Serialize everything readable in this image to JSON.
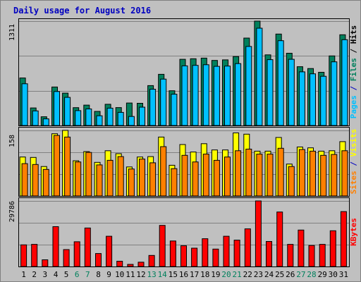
{
  "chart_data": {
    "type": "bar",
    "title": "Daily usage for August 2016",
    "categories": [
      "1",
      "2",
      "3",
      "4",
      "5",
      "6",
      "7",
      "8",
      "9",
      "10",
      "11",
      "12",
      "13",
      "14",
      "15",
      "16",
      "17",
      "18",
      "19",
      "20",
      "21",
      "22",
      "23",
      "24",
      "25",
      "26",
      "27",
      "28",
      "29",
      "30",
      "31"
    ],
    "weekend_days": [
      "6",
      "7",
      "13",
      "14",
      "20",
      "21",
      "27",
      "28"
    ],
    "panels": [
      {
        "name": "pages-files-hits",
        "ymax": 1311,
        "ymax_label": "1311",
        "right_label_parts": [
          "Pages",
          " / ",
          "Files",
          " / ",
          "Hits"
        ],
        "series": [
          {
            "name": "Hits",
            "color": "#00805c",
            "values": [
              597,
              221,
              110,
              484,
              407,
              224,
              256,
              177,
              267,
              225,
              283,
              279,
              501,
              643,
              437,
              832,
              839,
              847,
              818,
              825,
              866,
              1098,
              1311,
              888,
              1149,
              908,
              739,
              716,
              669,
              874,
              1140
            ]
          },
          {
            "name": "Files",
            "color": "#00c0ff",
            "values": [
              524,
              183,
              83,
              427,
              353,
              187,
              208,
              122,
              218,
              165,
              113,
              230,
              456,
              583,
              393,
              749,
              756,
              764,
              743,
              747,
              778,
              993,
              1222,
              827,
              1066,
              832,
              674,
              649,
              618,
              800,
              1078
            ]
          },
          {
            "name": "Pages",
            "color": "#0000c0",
            "values": [
              0,
              0,
              0,
              0,
              0,
              0,
              0,
              0,
              0,
              0,
              0,
              0,
              0,
              0,
              0,
              0,
              0,
              0,
              0,
              0,
              0,
              0,
              0,
              0,
              0,
              0,
              0,
              0,
              0,
              0,
              0
            ]
          }
        ]
      },
      {
        "name": "sites-visits",
        "ymax": 158,
        "ymax_label": "158",
        "right_label_parts": [
          "Sites",
          " / ",
          "Visits"
        ],
        "series": [
          {
            "name": "Visits",
            "color": "#ffff00",
            "values": [
              94,
              93,
              71,
              150,
              158,
              85,
              107,
              81,
              109,
              102,
              70,
              94,
              95,
              142,
              74,
              124,
              106,
              126,
              111,
              111,
              152,
              149,
              108,
              108,
              141,
              77,
              118,
              116,
              108,
              109,
              131
            ]
          },
          {
            "name": "Sites",
            "color": "#ff8000",
            "values": [
              78,
              76,
              64,
              146,
              142,
              82,
              105,
              75,
              86,
              95,
              65,
              89,
              80,
              119,
              66,
              98,
              82,
              101,
              86,
              94,
              109,
              113,
              101,
              101,
              115,
              71,
              112,
              108,
              98,
              100,
              109
            ]
          }
        ]
      },
      {
        "name": "kbytes",
        "ymax": 29786,
        "ymax_label": "29786",
        "right_label_parts": [
          "KBytes"
        ],
        "series": [
          {
            "name": "KBytes",
            "color": "#ff0000",
            "values": [
              9840,
              10044,
              3050,
              18108,
              7680,
              11232,
              17490,
              5904,
              13752,
              2400,
              948,
              1968,
              5040,
              18660,
              11598,
              9420,
              8340,
              12624,
              7920,
              13752,
              11976,
              17112,
              29786,
              11376,
              24768,
              10044,
              16548,
              9552,
              10044,
              16224,
              24960
            ]
          }
        ]
      }
    ]
  }
}
